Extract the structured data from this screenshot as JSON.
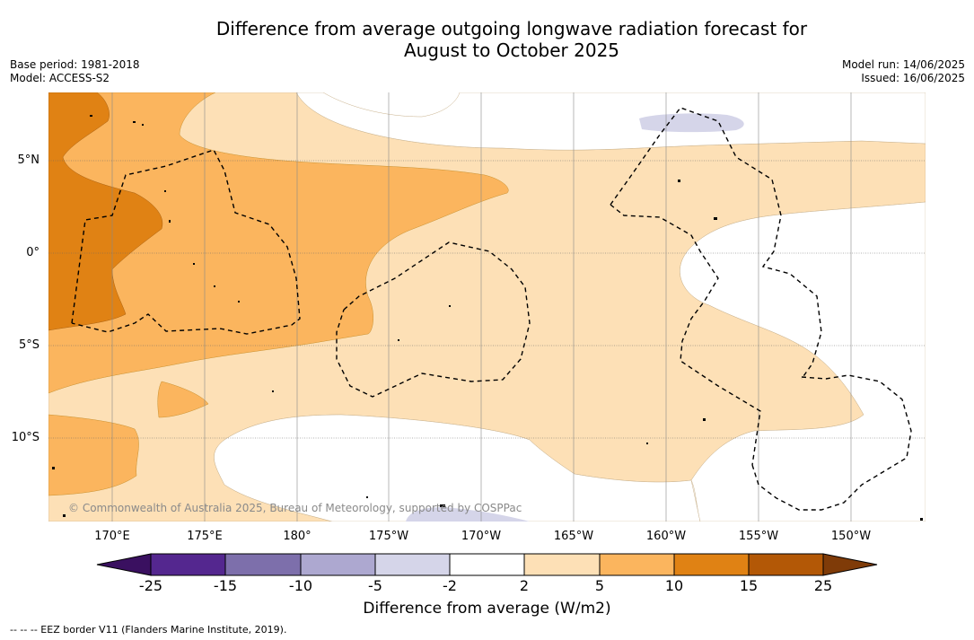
{
  "title_line1": "Difference from average outgoing longwave radiation forecast for",
  "title_line2": "August to October 2025",
  "base_period": "Base period: 1981-2018",
  "model": "Model: ACCESS-S2",
  "model_run": "Model run: 14/06/2025",
  "issued": "Issued: 16/06/2025",
  "copyright": "© Commonwealth of Australia 2025, Bureau of Meteorology, supported by COSPPac",
  "footnote": "--  --  -- EEZ border V11 (Flanders Marine Institute, 2019).",
  "lat_labels": [
    "5°N",
    "0°",
    "5°S",
    "10°S"
  ],
  "lon_labels": [
    "170°E",
    "175°E",
    "180°",
    "175°W",
    "170°W",
    "165°W",
    "160°W",
    "155°W",
    "150°W"
  ],
  "colorbar": {
    "title": "Difference from average (W/m2)",
    "ticks": [
      "-25",
      "-15",
      "-10",
      "-5",
      "-2",
      "2",
      "5",
      "10",
      "15",
      "25"
    ],
    "colors": {
      "under": "#3a1060",
      "n25_15": "#54278f",
      "n15_10": "#7d6fab",
      "n10_5": "#ada8d0",
      "n5_2": "#d5d5e9",
      "n2_2": "#ffffff",
      "p2_5": "#fde0b6",
      "p5_10": "#fbb55e",
      "p10_15": "#e08214",
      "p15_25": "#b35806",
      "over": "#7f3b08"
    }
  }
}
